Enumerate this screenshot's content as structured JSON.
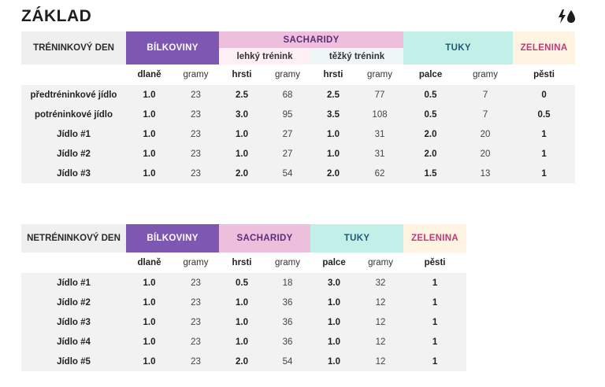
{
  "title": "ZÁKLAD",
  "icons": {
    "top_right": [
      "lightning-icon",
      "drop-icon"
    ]
  },
  "colors": {
    "bilkoviny": "#7e57b3",
    "sacharidy": "#eebfdc",
    "tuky": "#c3efe9",
    "zelenina": "#fff4e2",
    "zelenina_text": "#c0397b",
    "row_bg": "#f2f2f2"
  },
  "training": {
    "label": "TRÉNINKOVÝ DEN",
    "groups": {
      "bilkoviny": "BÍLKOVINY",
      "sacharidy": "SACHARIDY",
      "tuky": "TUKY",
      "zelenina": "ZELENINA"
    },
    "sub": {
      "light": "lehký trénink",
      "heavy": "těžký trénink"
    },
    "units": [
      "dlaně",
      "gramy",
      "hrsti",
      "gramy",
      "hrsti",
      "gramy",
      "palce",
      "gramy",
      "pěsti"
    ],
    "rows": [
      {
        "label": "předtréninkové jídlo",
        "values": [
          "1.0",
          "23",
          "2.5",
          "68",
          "2.5",
          "77",
          "0.5",
          "7",
          "0"
        ]
      },
      {
        "label": "potréninkové jídlo",
        "values": [
          "1.0",
          "23",
          "3.0",
          "95",
          "3.5",
          "108",
          "0.5",
          "7",
          "0.5"
        ]
      },
      {
        "label": "Jídlo #1",
        "values": [
          "1.0",
          "23",
          "1.0",
          "27",
          "1.0",
          "31",
          "2.0",
          "20",
          "1"
        ]
      },
      {
        "label": "Jídlo #2",
        "values": [
          "1.0",
          "23",
          "1.0",
          "27",
          "1.0",
          "31",
          "2.0",
          "20",
          "1"
        ]
      },
      {
        "label": "Jídlo #3",
        "values": [
          "1.0",
          "23",
          "2.0",
          "54",
          "2.0",
          "62",
          "1.5",
          "13",
          "1"
        ]
      }
    ]
  },
  "rest": {
    "label": "NETRÉNINKOVÝ DEN",
    "groups": {
      "bilkoviny": "BÍLKOVINY",
      "sacharidy": "SACHARIDY",
      "tuky": "TUKY",
      "zelenina": "ZELENINA"
    },
    "units": [
      "dlaně",
      "gramy",
      "hrsti",
      "gramy",
      "palce",
      "gramy",
      "pěsti"
    ],
    "rows": [
      {
        "label": "Jídlo #1",
        "values": [
          "1.0",
          "23",
          "0.5",
          "18",
          "3.0",
          "32",
          "1"
        ]
      },
      {
        "label": "Jídlo #2",
        "values": [
          "1.0",
          "23",
          "1.0",
          "36",
          "1.0",
          "12",
          "1"
        ]
      },
      {
        "label": "Jídlo #3",
        "values": [
          "1.0",
          "23",
          "1.0",
          "36",
          "1.0",
          "12",
          "1"
        ]
      },
      {
        "label": "Jídlo #4",
        "values": [
          "1.0",
          "23",
          "1.0",
          "36",
          "1.0",
          "12",
          "1"
        ]
      },
      {
        "label": "Jídlo #5",
        "values": [
          "1.0",
          "23",
          "2.0",
          "54",
          "1.0",
          "12",
          "1"
        ]
      }
    ]
  }
}
